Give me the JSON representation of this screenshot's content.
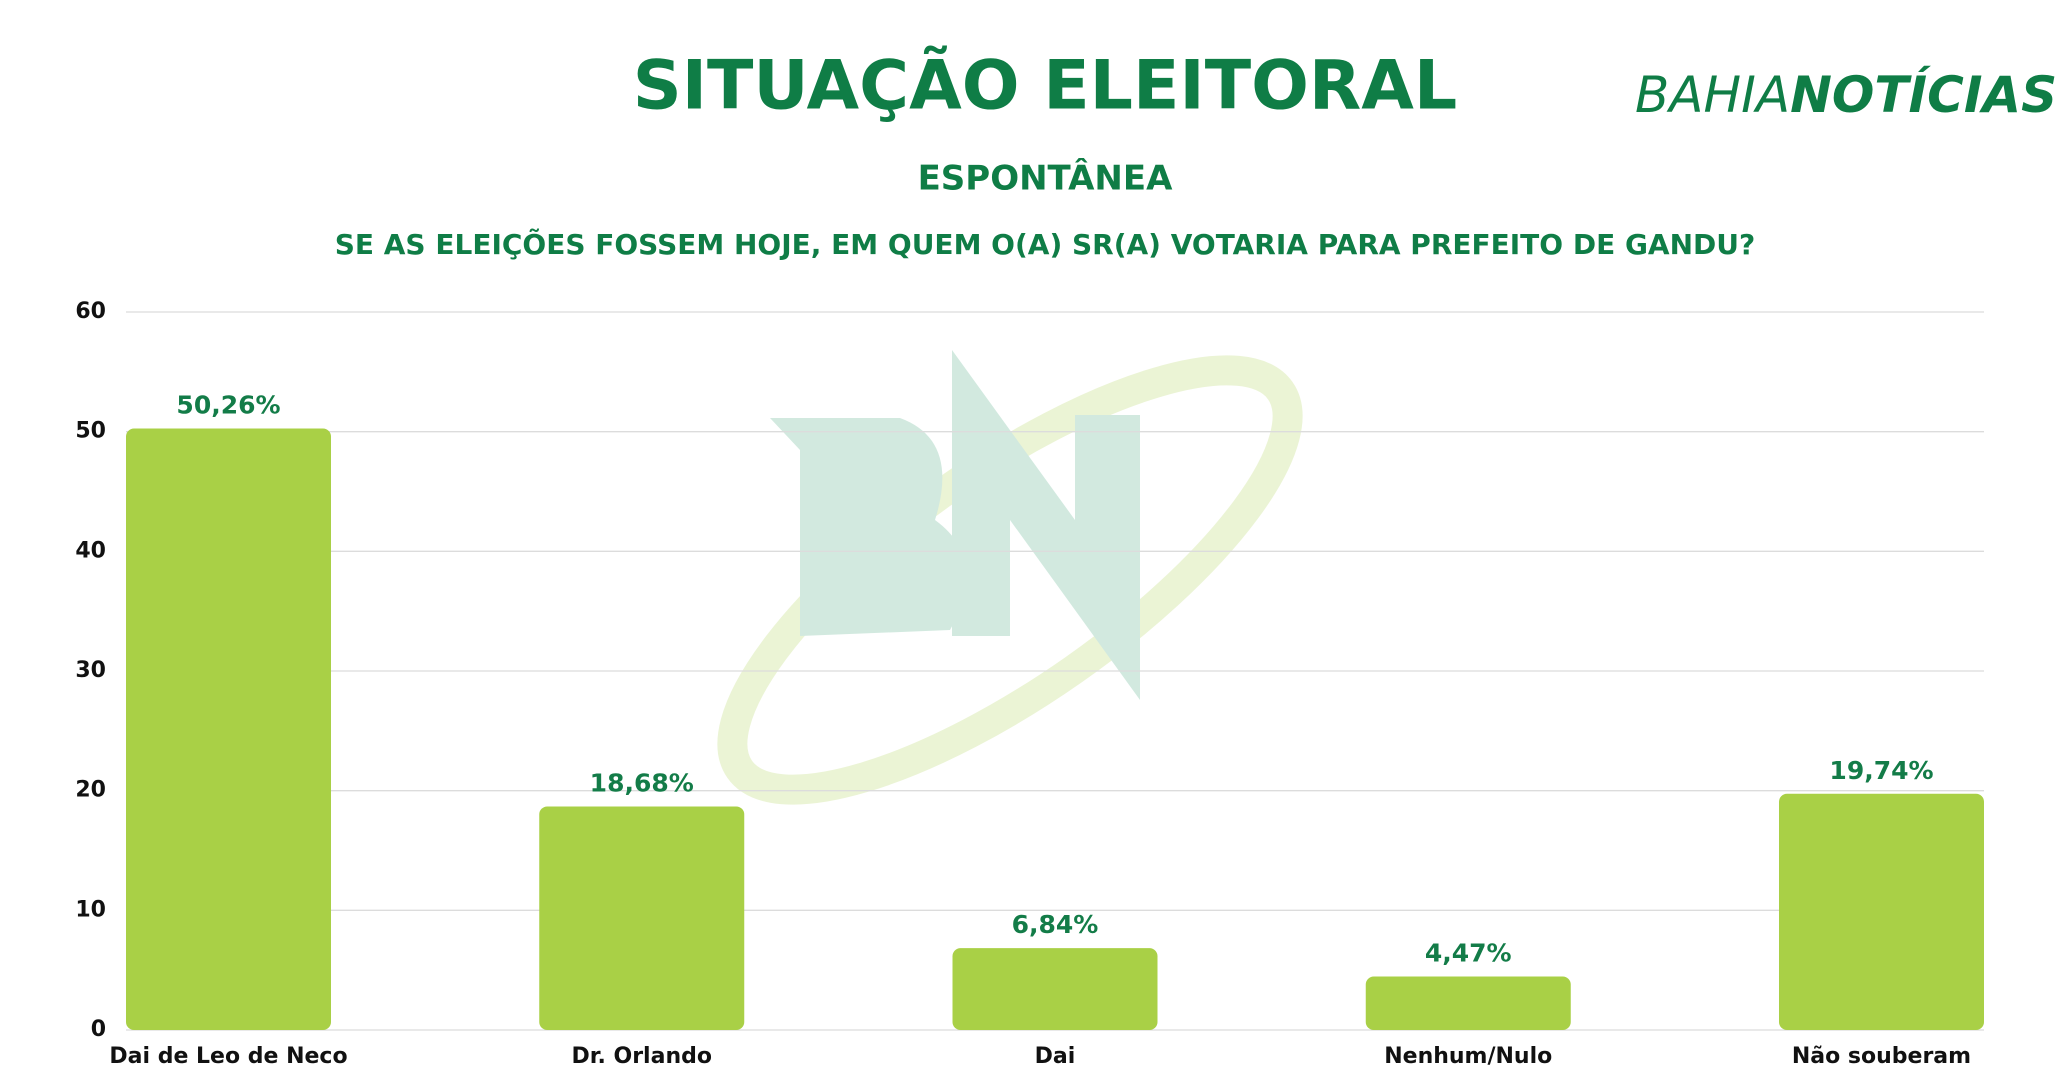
{
  "chart_data": {
    "type": "bar",
    "title": "SITUAÇÃO ELEITORAL",
    "subtitle": "ESPONTÂNEA",
    "question": "SE AS ELEIÇÕES FOSSEM HOJE, EM QUEM O(A) SR(A) VOTARIA PARA PREFEITO DE GANDU?",
    "logo": [
      "BAHIA",
      "NOTÍCIAS"
    ],
    "categories": [
      "Dai de Leo de Neco",
      "Dr. Orlando",
      "Dai",
      "Nenhum/Nulo",
      "Não souberam"
    ],
    "values": [
      50.26,
      18.68,
      6.84,
      4.47,
      19.74
    ],
    "value_labels": [
      "50,26%",
      "18,68%",
      "6,84%",
      "4,47%",
      "19,74%"
    ],
    "color": "#a9d046",
    "ylim": [
      0,
      60
    ],
    "yticks": [
      0,
      10,
      20,
      30,
      40,
      50,
      60
    ],
    "grid": true
  }
}
